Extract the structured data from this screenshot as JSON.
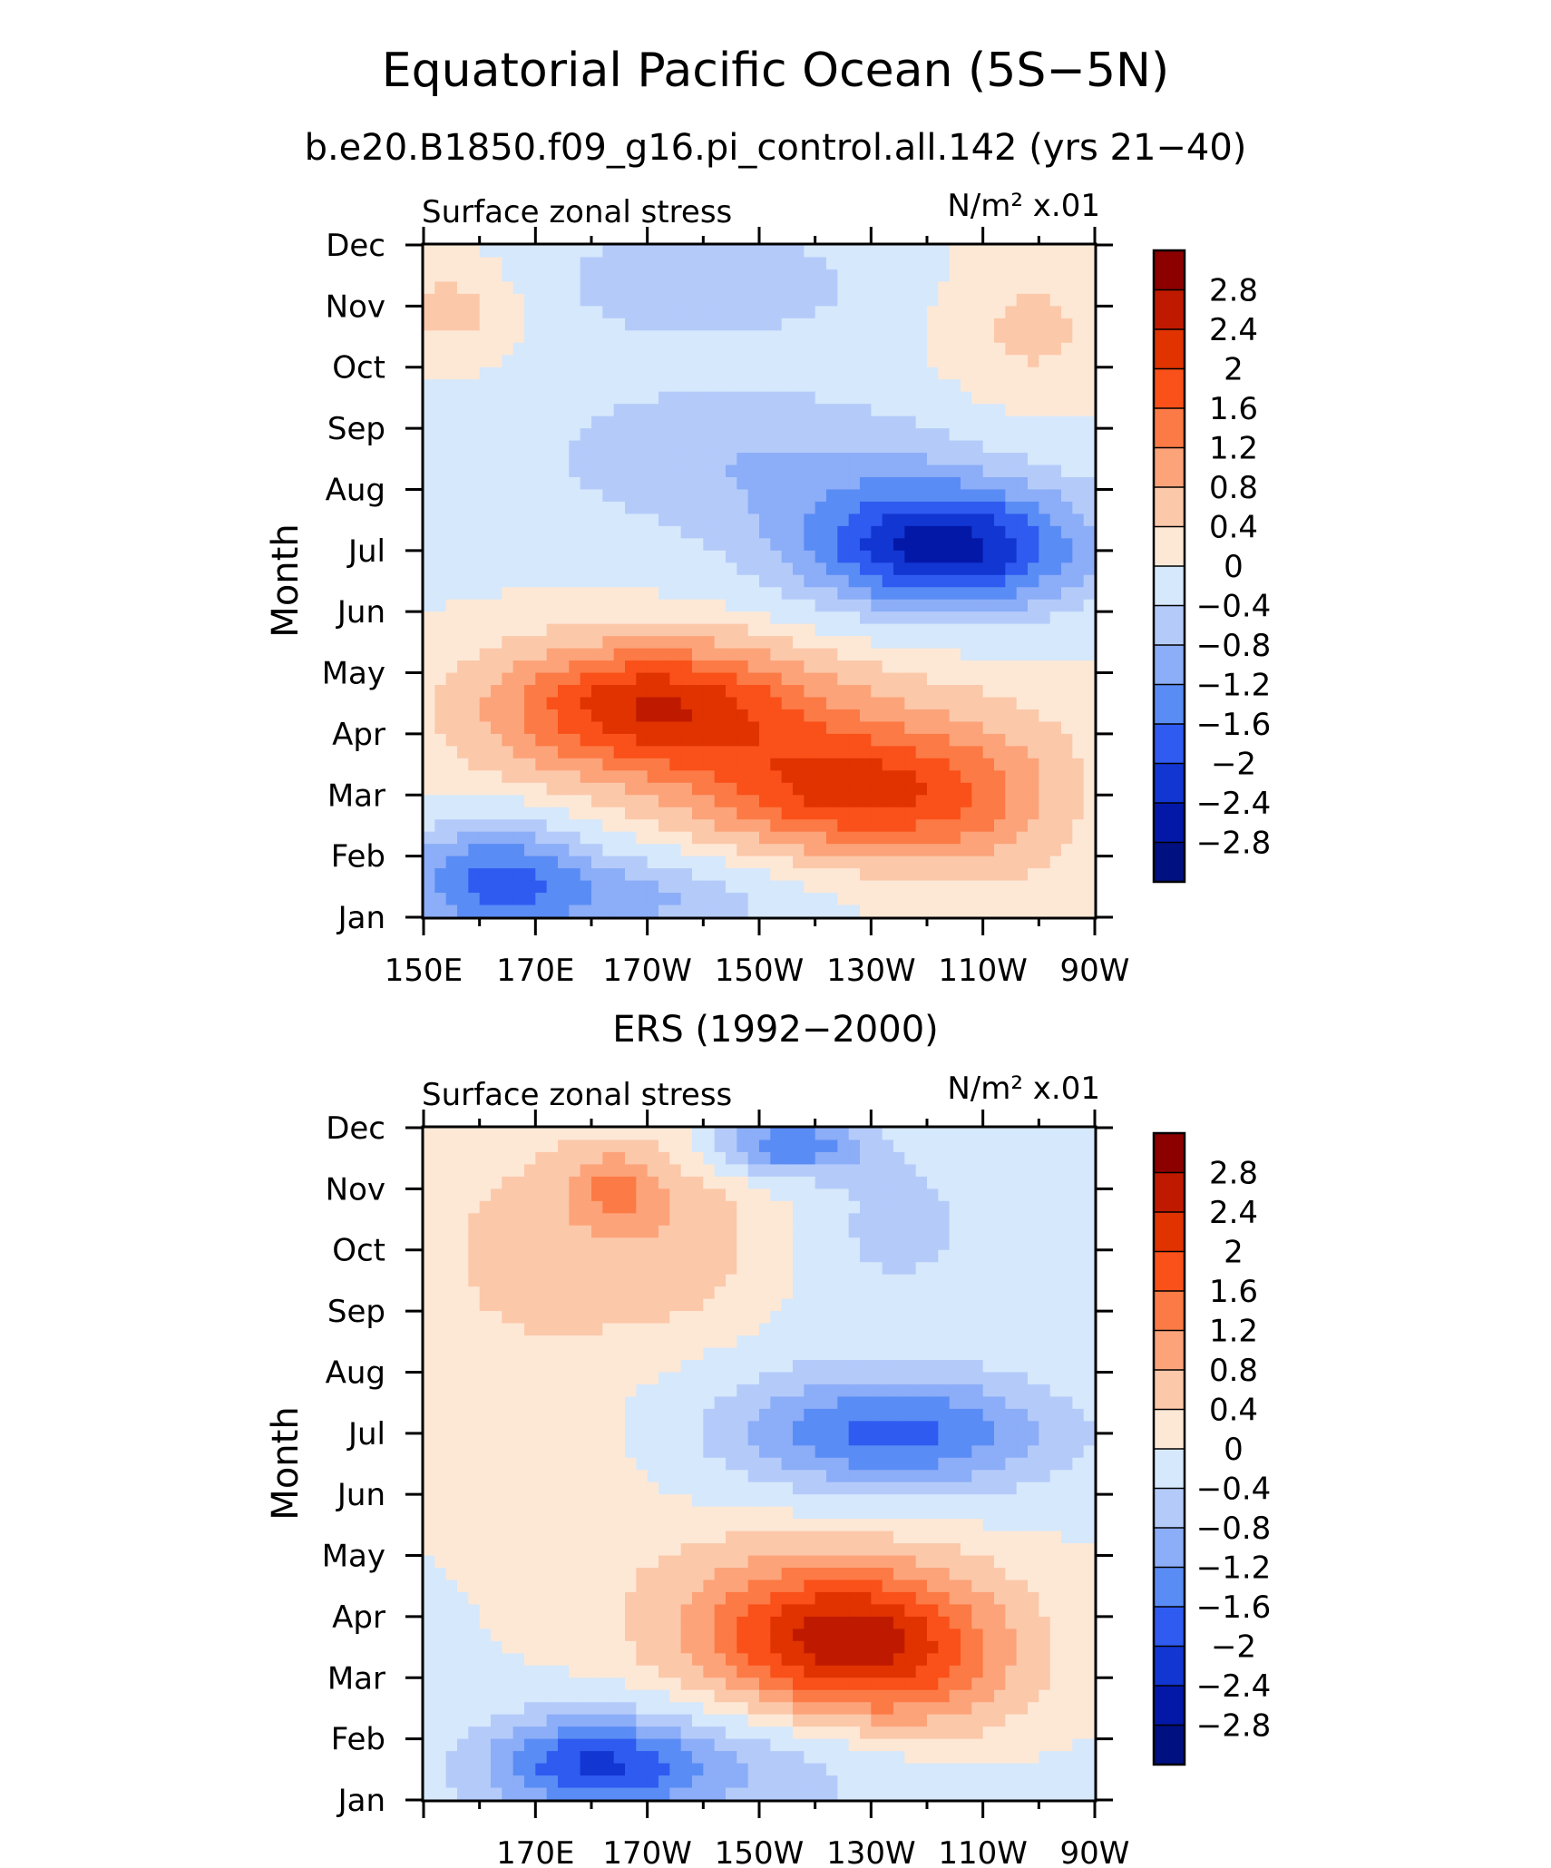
{
  "title": "Equatorial Pacific Ocean (5S−5N)",
  "subtitle": "b.e20.B1850.f09_g16.pi_control.all.142 (yrs 21−40)",
  "colorscale": {
    "levels": [
      "2.8",
      "2.4",
      "2",
      "1.6",
      "1.2",
      "0.8",
      "0.4",
      "0",
      "−0.4",
      "−0.8",
      "−1.2",
      "−1.6",
      "−2",
      "−2.4",
      "−2.8"
    ],
    "colors": [
      "#8c0000",
      "#bf1a00",
      "#e03300",
      "#fa5019",
      "#fc7a45",
      "#fca37a",
      "#fcc8aa",
      "#fde8d6",
      "#d6e8fb",
      "#b4cbfa",
      "#8cadf7",
      "#5a8cf5",
      "#2f5bf0",
      "#1236d2",
      "#0418a8",
      "#001080"
    ]
  },
  "chart_data": [
    {
      "type": "heatmap",
      "panel_title": "",
      "left_label": "Surface zonal stress",
      "right_label": "N/m² x.01",
      "ylabel": "Month",
      "xlabel": "",
      "y_ticks": [
        "Jan",
        "Feb",
        "Mar",
        "Apr",
        "May",
        "Jun",
        "Jul",
        "Aug",
        "Sep",
        "Oct",
        "Nov",
        "Dec"
      ],
      "x_ticks": [
        "150E",
        "170E",
        "170W",
        "150W",
        "130W",
        "110W",
        "90W"
      ],
      "xlim": [
        150,
        270
      ],
      "ylim": [
        1,
        12
      ],
      "x_unit_note": "longitude in degrees east (170W = 190, 90W = 270)",
      "blobs": [
        {
          "lon": 156,
          "month": 11.0,
          "value": 0.6,
          "rlon": 14,
          "rmon": 0.9
        },
        {
          "lon": 258,
          "month": 10.6,
          "value": 0.5,
          "rlon": 18,
          "rmon": 1.6
        },
        {
          "lon": 200,
          "month": 11.4,
          "value": -0.7,
          "rlon": 34,
          "rmon": 1.0
        },
        {
          "lon": 200,
          "month": 8.6,
          "value": -0.6,
          "rlon": 36,
          "rmon": 1.3
        },
        {
          "lon": 244,
          "month": 7.0,
          "value": -2.1,
          "rlon": 24,
          "rmon": 1.0
        },
        {
          "lon": 236,
          "month": 7.6,
          "value": -0.6,
          "rlon": 34,
          "rmon": 1.6
        },
        {
          "lon": 190,
          "month": 4.5,
          "value": 1.7,
          "rlon": 26,
          "rmon": 1.0
        },
        {
          "lon": 226,
          "month": 3.0,
          "value": 1.6,
          "rlon": 24,
          "rmon": 1.0
        },
        {
          "lon": 205,
          "month": 4.0,
          "value": 0.9,
          "rlon": 46,
          "rmon": 1.5
        },
        {
          "lon": 250,
          "month": 2.8,
          "value": 0.7,
          "rlon": 18,
          "rmon": 1.4
        },
        {
          "lon": 163,
          "month": 1.6,
          "value": -1.7,
          "rlon": 18,
          "rmon": 1.0
        },
        {
          "lon": 192,
          "month": 1.3,
          "value": -0.8,
          "rlon": 22,
          "rmon": 0.7
        }
      ]
    },
    {
      "type": "heatmap",
      "panel_title": "ERS (1992−2000)",
      "left_label": "Surface zonal stress",
      "right_label": "N/m² x.01",
      "ylabel": "Month",
      "xlabel": "",
      "y_ticks": [
        "Jan",
        "Feb",
        "Mar",
        "Apr",
        "May",
        "Jun",
        "Jul",
        "Aug",
        "Sep",
        "Oct",
        "Nov",
        "Dec"
      ],
      "x_ticks": [
        "170E",
        "170W",
        "150W",
        "130W",
        "110W",
        "90W"
      ],
      "xlim": [
        150,
        270
      ],
      "ylim": [
        1,
        12
      ],
      "x_unit_note": "longitude in degrees east (170W = 190, 90W = 270)",
      "blobs": [
        {
          "lon": 168,
          "month": 10.0,
          "value": 0.5,
          "rlon": 22,
          "rmon": 2.2
        },
        {
          "lon": 195,
          "month": 10.3,
          "value": 0.6,
          "rlon": 18,
          "rmon": 1.8
        },
        {
          "lon": 184,
          "month": 11.0,
          "value": 0.8,
          "rlon": 8,
          "rmon": 0.6
        },
        {
          "lon": 215,
          "month": 11.7,
          "value": -1.6,
          "rlon": 14,
          "rmon": 0.5
        },
        {
          "lon": 235,
          "month": 10.4,
          "value": -0.6,
          "rlon": 14,
          "rmon": 1.2
        },
        {
          "lon": 236,
          "month": 7.0,
          "value": -1.2,
          "rlon": 26,
          "rmon": 0.9
        },
        {
          "lon": 224,
          "month": 7.0,
          "value": -0.6,
          "rlon": 40,
          "rmon": 1.3
        },
        {
          "lon": 224,
          "month": 3.6,
          "value": 1.6,
          "rlon": 22,
          "rmon": 1.1
        },
        {
          "lon": 220,
          "month": 4.0,
          "value": 0.9,
          "rlon": 34,
          "rmon": 1.6
        },
        {
          "lon": 240,
          "month": 3.0,
          "value": 0.7,
          "rlon": 20,
          "rmon": 1.3
        },
        {
          "lon": 180,
          "month": 1.6,
          "value": -1.5,
          "rlon": 18,
          "rmon": 0.8
        },
        {
          "lon": 200,
          "month": 1.5,
          "value": -0.8,
          "rlon": 40,
          "rmon": 1.0
        },
        {
          "lon": 176,
          "month": 6.6,
          "value": 0.3,
          "rlon": 26,
          "rmon": 1.5
        }
      ]
    }
  ]
}
